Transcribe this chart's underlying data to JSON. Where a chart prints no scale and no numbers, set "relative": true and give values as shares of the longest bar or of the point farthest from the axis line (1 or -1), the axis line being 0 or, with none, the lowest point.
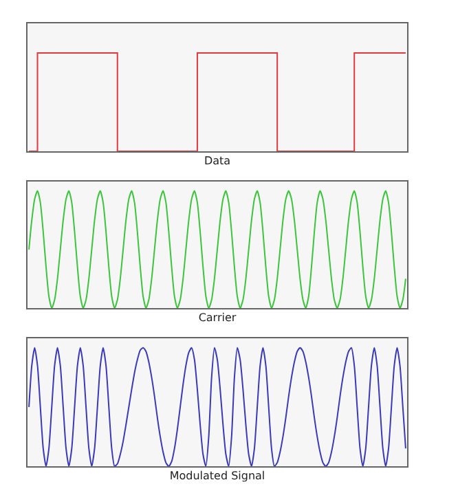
{
  "chart_data": [
    {
      "type": "step",
      "xlabel": "Data",
      "relative": true,
      "marker": "none",
      "line_style": "solid",
      "categories": [
        null,
        null,
        null,
        null,
        null,
        null,
        null,
        null,
        null,
        null,
        null,
        null,
        null,
        null,
        null,
        null,
        null,
        null,
        null,
        null,
        null,
        null,
        null,
        null,
        null,
        null,
        null,
        null,
        null,
        null,
        null,
        null,
        null,
        null,
        null,
        null,
        null,
        null,
        null,
        null,
        null,
        null,
        null,
        null,
        null,
        null,
        null,
        null,
        null,
        null,
        null,
        null,
        null,
        null,
        null,
        null,
        null,
        null,
        null,
        null,
        null,
        null,
        null,
        null,
        null,
        null,
        null,
        null,
        null,
        null,
        null,
        null,
        null,
        null,
        null,
        null,
        null,
        null,
        null,
        null,
        null,
        null,
        null,
        null,
        null,
        null,
        null,
        null,
        null,
        null,
        null,
        null,
        null,
        null,
        null,
        null,
        null,
        null,
        null,
        null,
        null,
        null,
        null,
        null,
        null,
        null,
        null,
        null,
        null,
        null,
        null,
        null,
        null,
        null,
        null,
        null,
        null,
        null,
        null,
        null,
        null,
        null,
        null,
        null,
        null,
        null,
        null,
        null,
        null,
        null,
        null,
        null,
        null
      ],
      "series": [
        {
          "color": "#e0393e",
          "values": [
            0,
            0,
            0,
            1,
            1,
            1,
            1,
            1,
            1,
            1,
            1,
            1,
            1,
            1,
            1,
            1,
            1,
            1,
            1,
            1,
            1,
            1,
            1,
            1,
            1,
            1,
            1,
            1,
            1,
            1,
            1,
            0,
            0,
            0,
            0,
            0,
            0,
            0,
            0,
            0,
            0,
            0,
            0,
            0,
            0,
            0,
            0,
            0,
            0,
            0,
            0,
            0,
            0,
            0,
            0,
            0,
            0,
            0,
            0,
            1,
            1,
            1,
            1,
            1,
            1,
            1,
            1,
            1,
            1,
            1,
            1,
            1,
            1,
            1,
            1,
            1,
            1,
            1,
            1,
            1,
            1,
            1,
            1,
            1,
            1,
            1,
            1,
            0,
            0,
            0,
            0,
            0,
            0,
            0,
            0,
            0,
            0,
            0,
            0,
            0,
            0,
            0,
            0,
            0,
            0,
            0,
            0,
            0,
            0,
            0,
            0,
            0,
            0,
            0,
            1,
            1,
            1,
            1,
            1,
            1,
            1,
            1,
            1,
            1,
            1,
            1,
            1,
            1,
            1,
            1,
            1,
            1,
            1
          ]
        }
      ]
    },
    {
      "type": "line",
      "xlabel": "Carrier",
      "relative": true,
      "marker": "none",
      "line_style": "solid",
      "categories": [
        null,
        null,
        null,
        null,
        null,
        null,
        null,
        null,
        null,
        null,
        null,
        null,
        null,
        null,
        null,
        null,
        null,
        null,
        null,
        null,
        null,
        null,
        null,
        null,
        null,
        null,
        null,
        null,
        null,
        null,
        null,
        null,
        null,
        null,
        null,
        null,
        null,
        null,
        null,
        null,
        null,
        null,
        null,
        null,
        null,
        null,
        null,
        null,
        null,
        null,
        null,
        null,
        null,
        null,
        null,
        null,
        null,
        null,
        null,
        null,
        null,
        null,
        null,
        null,
        null,
        null,
        null,
        null,
        null,
        null,
        null,
        null,
        null,
        null,
        null,
        null,
        null,
        null,
        null,
        null,
        null,
        null,
        null,
        null,
        null,
        null,
        null,
        null,
        null,
        null,
        null,
        null,
        null,
        null,
        null,
        null,
        null,
        null,
        null,
        null,
        null,
        null,
        null,
        null,
        null,
        null,
        null,
        null,
        null,
        null,
        null,
        null,
        null,
        null,
        null,
        null,
        null,
        null,
        null,
        null,
        null,
        null,
        null,
        null,
        null,
        null,
        null,
        null,
        null,
        null,
        null,
        null,
        null
      ],
      "series": [
        {
          "color": "#3cc43c",
          "values": [
            0.5,
            0.75,
            0.93,
            1,
            0.9,
            0.65,
            0.35,
            0.1,
            0,
            0.07,
            0.25,
            0.5,
            0.75,
            0.93,
            1,
            0.9,
            0.65,
            0.35,
            0.1,
            0,
            0.07,
            0.25,
            0.5,
            0.75,
            0.93,
            1,
            0.9,
            0.65,
            0.35,
            0.1,
            0,
            0.07,
            0.25,
            0.5,
            0.75,
            0.93,
            1,
            0.9,
            0.65,
            0.35,
            0.1,
            0,
            0.07,
            0.25,
            0.5,
            0.75,
            0.93,
            1,
            0.9,
            0.65,
            0.35,
            0.1,
            0,
            0.07,
            0.25,
            0.5,
            0.75,
            0.93,
            1,
            0.9,
            0.65,
            0.35,
            0.1,
            0,
            0.07,
            0.25,
            0.5,
            0.75,
            0.93,
            1,
            0.9,
            0.65,
            0.35,
            0.1,
            0,
            0.07,
            0.25,
            0.5,
            0.75,
            0.93,
            1,
            0.9,
            0.65,
            0.35,
            0.1,
            0,
            0.07,
            0.25,
            0.5,
            0.75,
            0.93,
            1,
            0.93,
            0.75,
            0.5,
            0.25,
            0.07,
            0,
            0.1,
            0.35,
            0.65,
            0.9,
            1,
            0.93,
            0.75,
            0.5,
            0.25,
            0.07,
            0,
            0.07,
            0.25,
            0.5,
            0.75,
            0.93,
            1,
            0.9,
            0.65,
            0.35,
            0.1,
            0,
            0.07,
            0.25,
            0.5,
            0.75,
            0.93,
            1,
            0.9,
            0.65,
            0.35,
            0.1,
            0,
            0.07,
            0.25
          ]
        }
      ]
    },
    {
      "type": "line",
      "xlabel": "Modulated Signal",
      "relative": true,
      "marker": "none",
      "line_style": "solid",
      "categories": [
        null,
        null,
        null,
        null,
        null,
        null,
        null,
        null,
        null,
        null,
        null,
        null,
        null,
        null,
        null,
        null,
        null,
        null,
        null,
        null,
        null,
        null,
        null,
        null,
        null,
        null,
        null,
        null,
        null,
        null,
        null,
        null,
        null,
        null,
        null,
        null,
        null,
        null,
        null,
        null,
        null,
        null,
        null,
        null,
        null,
        null,
        null,
        null,
        null,
        null,
        null,
        null,
        null,
        null,
        null,
        null,
        null,
        null,
        null,
        null,
        null,
        null,
        null,
        null,
        null,
        null,
        null,
        null,
        null,
        null,
        null,
        null,
        null,
        null,
        null,
        null,
        null,
        null,
        null,
        null,
        null,
        null,
        null,
        null,
        null,
        null,
        null,
        null,
        null,
        null,
        null,
        null,
        null,
        null,
        null,
        null,
        null,
        null,
        null,
        null,
        null,
        null,
        null,
        null,
        null,
        null,
        null,
        null,
        null,
        null,
        null,
        null,
        null,
        null,
        null,
        null,
        null,
        null,
        null,
        null,
        null,
        null,
        null,
        null,
        null,
        null,
        null,
        null,
        null,
        null,
        null,
        null,
        null
      ],
      "series": [
        {
          "color": "#3a3ab8",
          "values": [
            0.5,
            0.85,
            1,
            0.85,
            0.5,
            0.15,
            0,
            0.15,
            0.5,
            0.85,
            1,
            0.85,
            0.5,
            0.15,
            0,
            0.15,
            0.5,
            0.85,
            1,
            0.85,
            0.5,
            0.15,
            0,
            0.15,
            0.5,
            0.85,
            1,
            0.85,
            0.5,
            0.15,
            0,
            0.02,
            0.1,
            0.21,
            0.35,
            0.5,
            0.65,
            0.79,
            0.9,
            0.98,
            1,
            0.97,
            0.88,
            0.75,
            0.59,
            0.41,
            0.25,
            0.12,
            0.03,
            0,
            0.04,
            0.15,
            0.31,
            0.5,
            0.69,
            0.85,
            0.96,
            1,
            0.9,
            0.65,
            0.35,
            0.1,
            0,
            0.25,
            0.75,
            1,
            0.9,
            0.65,
            0.35,
            0.1,
            0,
            0.25,
            0.75,
            1,
            0.9,
            0.65,
            0.35,
            0.1,
            0,
            0.15,
            0.5,
            0.85,
            1,
            0.85,
            0.5,
            0.15,
            0,
            0.03,
            0.12,
            0.25,
            0.41,
            0.59,
            0.75,
            0.88,
            0.97,
            1,
            0.97,
            0.88,
            0.75,
            0.59,
            0.41,
            0.25,
            0.12,
            0.03,
            0,
            0.03,
            0.12,
            0.25,
            0.41,
            0.59,
            0.75,
            0.88,
            0.97,
            1,
            0.85,
            0.5,
            0.15,
            0,
            0.15,
            0.5,
            0.85,
            1,
            0.85,
            0.5,
            0.15,
            0,
            0.15,
            0.5,
            0.85,
            1,
            0.85,
            0.5,
            0.15
          ]
        }
      ]
    }
  ]
}
